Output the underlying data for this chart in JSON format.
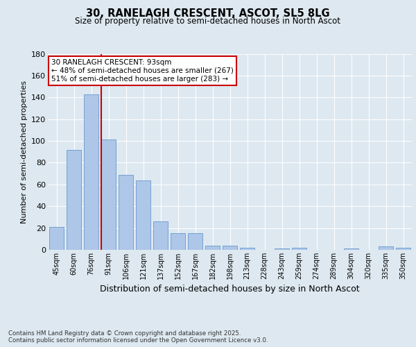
{
  "title1": "30, RANELAGH CRESCENT, ASCOT, SL5 8LG",
  "title2": "Size of property relative to semi-detached houses in North Ascot",
  "xlabel": "Distribution of semi-detached houses by size in North Ascot",
  "ylabel": "Number of semi-detached properties",
  "categories": [
    "45sqm",
    "60sqm",
    "76sqm",
    "91sqm",
    "106sqm",
    "121sqm",
    "137sqm",
    "152sqm",
    "167sqm",
    "182sqm",
    "198sqm",
    "213sqm",
    "228sqm",
    "243sqm",
    "259sqm",
    "274sqm",
    "289sqm",
    "304sqm",
    "320sqm",
    "335sqm",
    "350sqm"
  ],
  "values": [
    21,
    92,
    143,
    101,
    69,
    64,
    26,
    15,
    15,
    4,
    4,
    2,
    0,
    1,
    2,
    0,
    0,
    1,
    0,
    3,
    2
  ],
  "bar_color": "#aec6e8",
  "bar_edge_color": "#6699cc",
  "red_line_color": "#cc0000",
  "annotation_text": "30 RANELAGH CRESCENT: 93sqm\n← 48% of semi-detached houses are smaller (267)\n51% of semi-detached houses are larger (283) →",
  "annotation_box_color": "#ffffff",
  "annotation_border_color": "#cc0000",
  "footnote": "Contains HM Land Registry data © Crown copyright and database right 2025.\nContains public sector information licensed under the Open Government Licence v3.0.",
  "bg_color": "#dde8f0",
  "plot_bg_color": "#dde8f0",
  "ylim": [
    0,
    180
  ],
  "yticks": [
    0,
    20,
    40,
    60,
    80,
    100,
    120,
    140,
    160,
    180
  ]
}
